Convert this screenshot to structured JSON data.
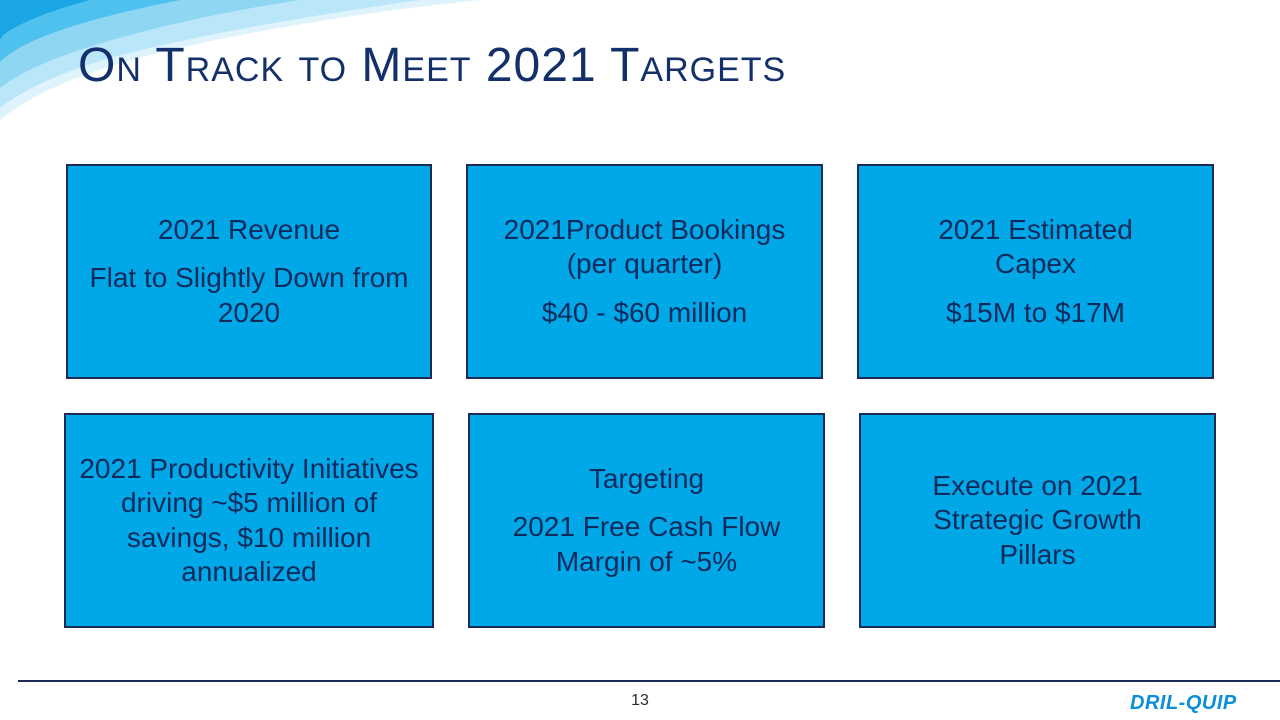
{
  "slide": {
    "title": "On Track to Meet 2021 Targets",
    "page_number": "13",
    "logo_text": "DRIL-QUIP",
    "colors": {
      "box_fill": "#00a8e8",
      "box_border": "#1b2a56",
      "text_dark": "#0f2a5c",
      "title": "#13306b"
    },
    "boxes": [
      {
        "heading": "2021 Revenue",
        "detail": "Flat to Slightly Down from 2020"
      },
      {
        "heading": "2021Product Bookings (per quarter)",
        "detail": "$40 - $60 million"
      },
      {
        "heading": "2021 Estimated Capex",
        "detail": "$15M to $17M"
      },
      {
        "heading": "2021 Productivity Initiatives driving ~$5 million of savings, $10 million annualized",
        "detail": ""
      },
      {
        "heading": "Targeting",
        "detail": "2021 Free Cash Flow Margin of ~5%"
      },
      {
        "heading": "Execute on 2021 Strategic Growth Pillars",
        "detail": ""
      }
    ]
  }
}
